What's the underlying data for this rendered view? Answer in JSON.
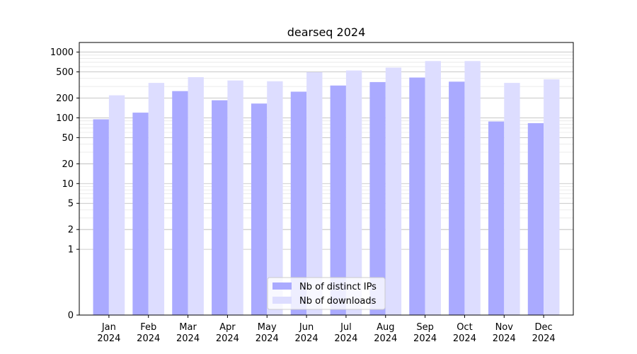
{
  "chart_data": {
    "type": "bar",
    "title": "dearseq 2024",
    "xlabel": "",
    "ylabel": "",
    "yscale": "symlog",
    "ylim": [
      0,
      1400
    ],
    "y_ticks": [
      0,
      1,
      2,
      5,
      10,
      20,
      50,
      100,
      200,
      500,
      1000
    ],
    "grid": true,
    "legend_position": "bottom-center",
    "categories": [
      [
        "Jan",
        "2024"
      ],
      [
        "Feb",
        "2024"
      ],
      [
        "Mar",
        "2024"
      ],
      [
        "Apr",
        "2024"
      ],
      [
        "May",
        "2024"
      ],
      [
        "Jun",
        "2024"
      ],
      [
        "Jul",
        "2024"
      ],
      [
        "Aug",
        "2024"
      ],
      [
        "Sep",
        "2024"
      ],
      [
        "Oct",
        "2024"
      ],
      [
        "Nov",
        "2024"
      ],
      [
        "Dec",
        "2024"
      ]
    ],
    "series": [
      {
        "name": "Nb of distinct IPs",
        "color": "#aaaaff",
        "values": [
          95,
          120,
          255,
          185,
          165,
          250,
          310,
          350,
          410,
          355,
          88,
          83
        ]
      },
      {
        "name": "Nb of downloads",
        "color": "#ddddff",
        "values": [
          220,
          340,
          415,
          370,
          360,
          495,
          525,
          580,
          730,
          730,
          340,
          385
        ]
      }
    ]
  }
}
